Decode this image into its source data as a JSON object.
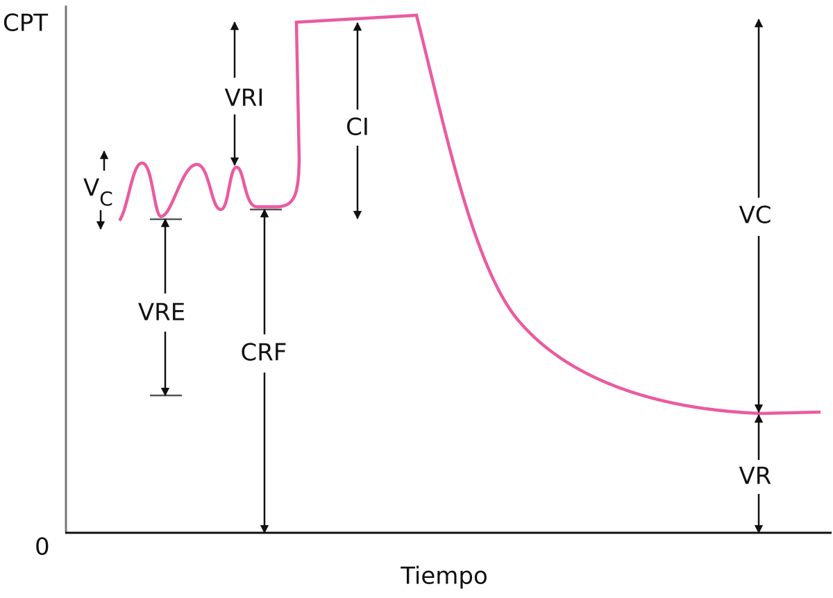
{
  "axes": {
    "y_top_label": "CPT",
    "y_bottom_label": "0",
    "x_label": "Tiempo"
  },
  "annotations": {
    "vri": "VRI",
    "ci": "CI",
    "vc": "VC",
    "vre": "VRE",
    "crf": "CRF",
    "vr": "VR",
    "tidal_volume": {
      "text": "V",
      "subscript": "C"
    }
  }
}
